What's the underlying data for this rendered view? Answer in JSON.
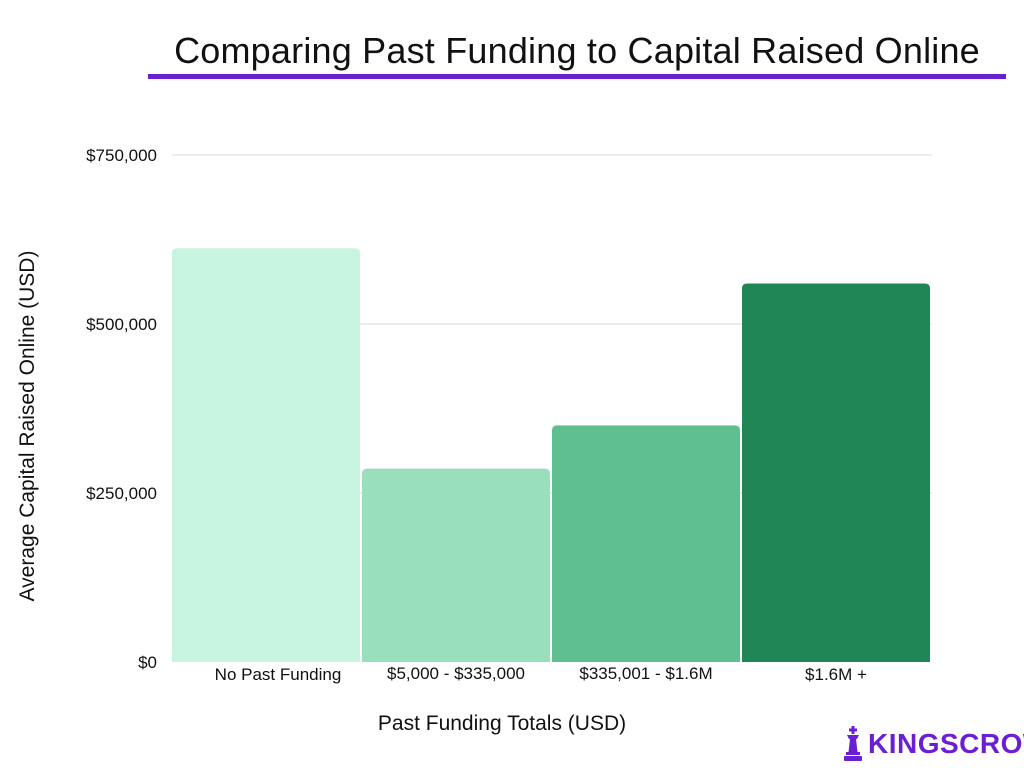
{
  "logo": {
    "text": "KINGSCROWD",
    "icon": "chess-king-icon",
    "color": "#6b1fd4"
  },
  "chart_data": {
    "type": "bar",
    "title": "Comparing Past Funding to Capital Raised Online",
    "xlabel": "Past Funding Totals (USD)",
    "ylabel": "Average Capital Raised Online (USD)",
    "categories": [
      "No Past Funding",
      "$5,000 - $335,000",
      "$335,001 - $1.6M",
      "$1.6M +"
    ],
    "values": [
      612000,
      286000,
      350000,
      560000
    ],
    "colors": [
      "#c8f5e0",
      "#99dfbd",
      "#5fbf8f",
      "#218656"
    ],
    "ylim": [
      0,
      750000
    ],
    "yticks": [
      0,
      250000,
      500000,
      750000
    ],
    "ytick_labels": [
      "$0",
      "$250,000",
      "$500,000",
      "$750,000"
    ],
    "grid": true,
    "title_rule_color": "#6b1fd4"
  }
}
